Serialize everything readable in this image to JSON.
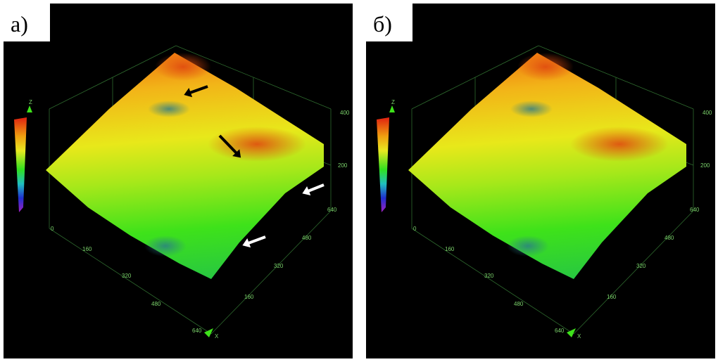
{
  "panels": [
    {
      "label": "а)",
      "z_axis": {
        "title": "Z",
        "ticks": [
          0,
          200,
          400
        ]
      },
      "x_axis": {
        "title": "X",
        "ticks": [
          160,
          320,
          480,
          640
        ]
      },
      "y_axis": {
        "ticks": [
          160,
          320,
          480,
          640
        ]
      }
    },
    {
      "label": "б)",
      "z_axis": {
        "title": "Z",
        "ticks": [
          0,
          200,
          400
        ]
      },
      "x_axis": {
        "title": "X",
        "ticks": [
          160,
          320,
          480,
          640
        ]
      },
      "y_axis": {
        "ticks": [
          160,
          320,
          480,
          640
        ]
      }
    }
  ]
}
